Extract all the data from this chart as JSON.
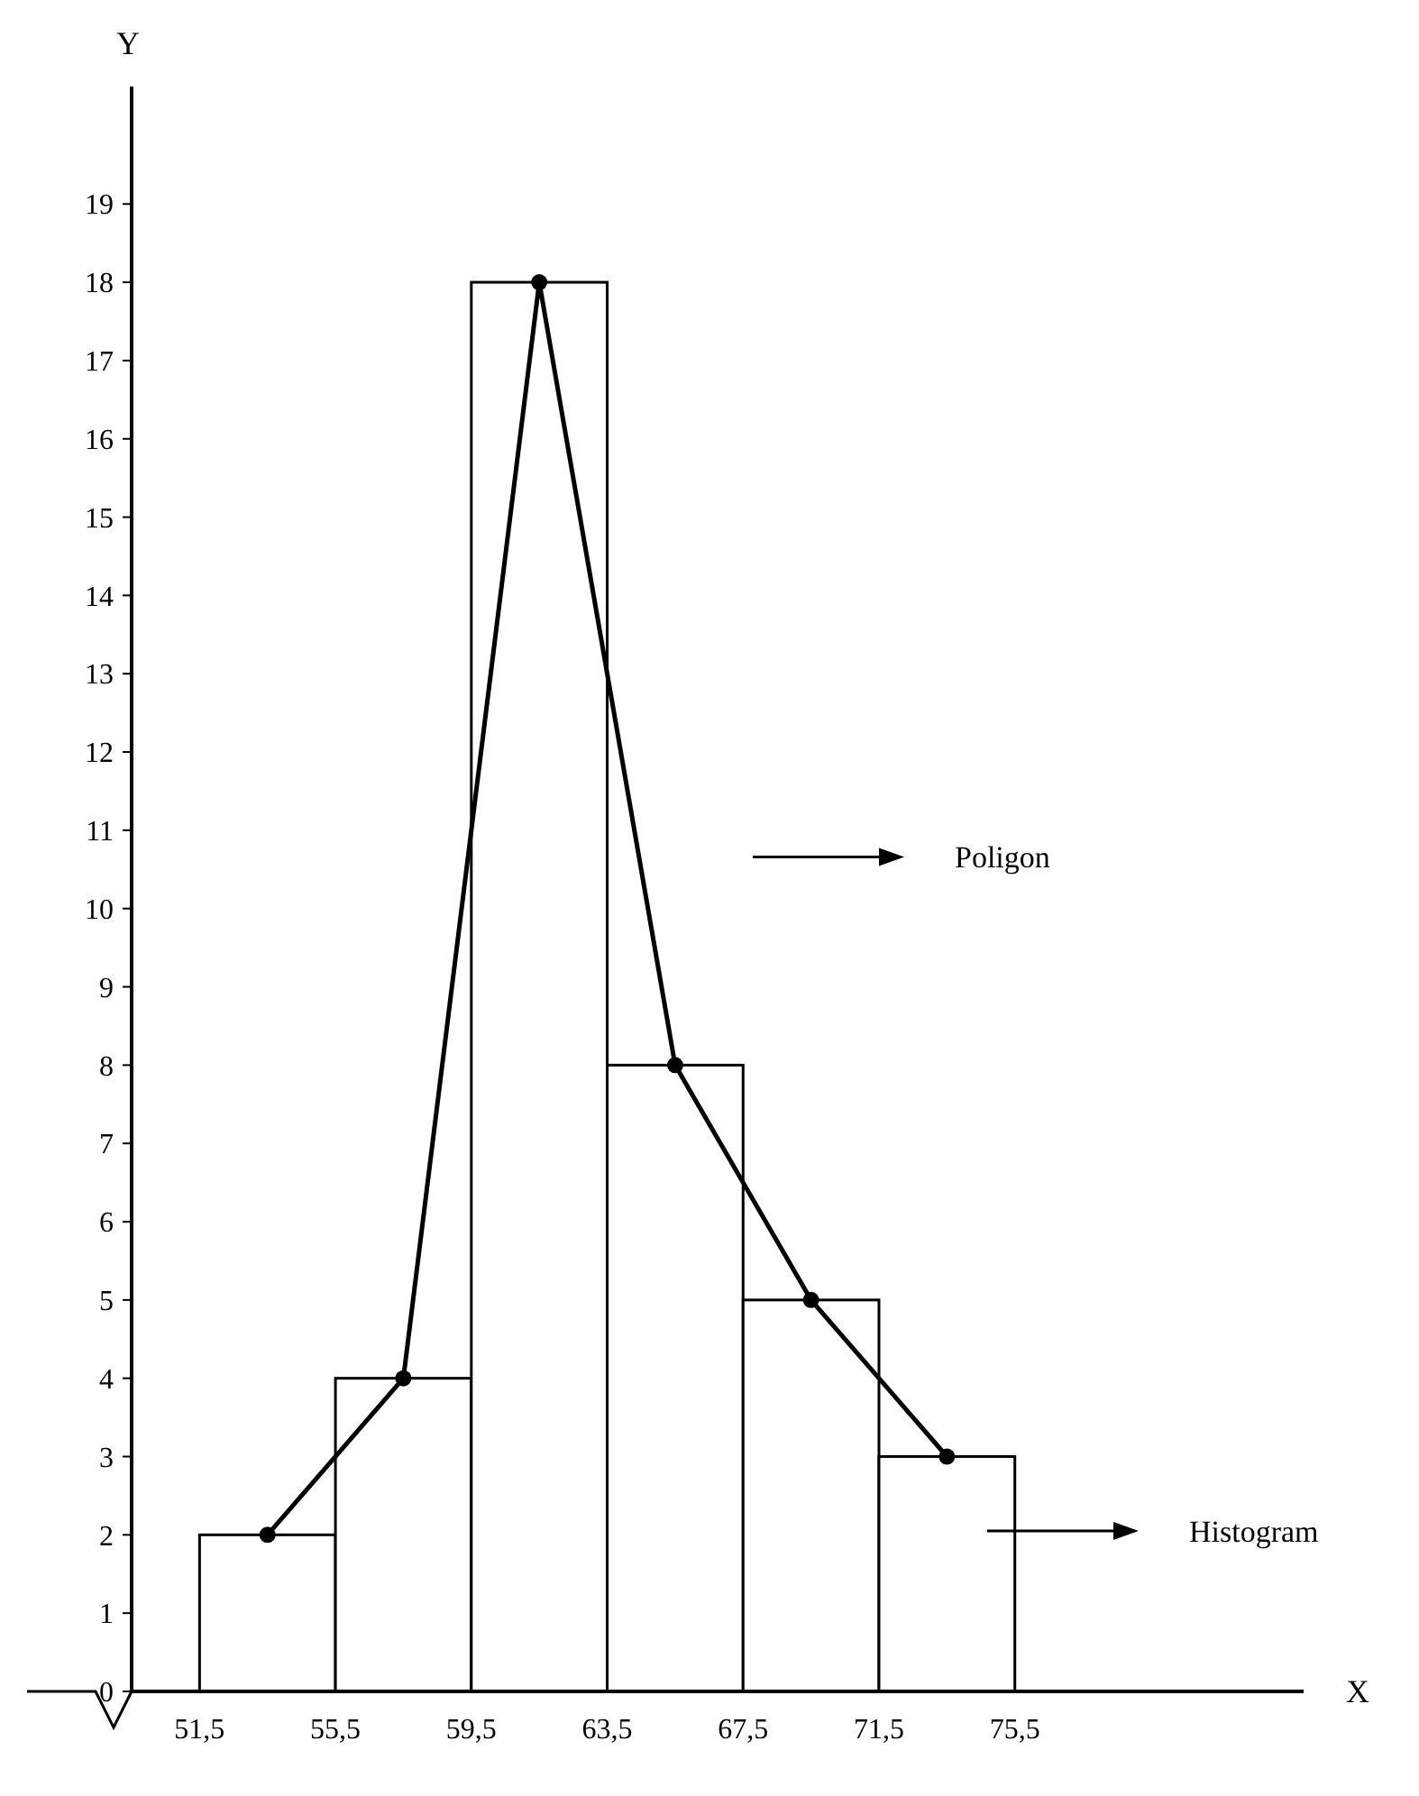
{
  "chart_data": {
    "type": "histogram",
    "xlabel": "X",
    "ylabel": "Y",
    "bins": [
      51.5,
      55.5,
      59.5,
      63.5,
      67.5,
      71.5,
      75.5
    ],
    "values": [
      2,
      4,
      18,
      8,
      5,
      3
    ],
    "color": "#ffffff",
    "series": [
      {
        "type": "line",
        "x": [
          53.5,
          57.5,
          61.5,
          65.5,
          69.5,
          73.5
        ],
        "values": [
          2,
          4,
          18,
          8,
          5,
          3
        ],
        "color": "#000000",
        "marker": "circle"
      }
    ],
    "xlim": [
      49.5,
      84
    ],
    "ylim": [
      0,
      20.5
    ],
    "xticks": [
      {
        "value": 51.5,
        "label": "51,5"
      },
      {
        "value": 55.5,
        "label": "55,5"
      },
      {
        "value": 59.5,
        "label": "59,5"
      },
      {
        "value": 63.5,
        "label": "63,5"
      },
      {
        "value": 67.5,
        "label": "67,5"
      },
      {
        "value": 71.5,
        "label": "71,5"
      },
      {
        "value": 75.5,
        "label": "75,5"
      }
    ],
    "yticks": [
      0,
      1,
      2,
      3,
      4,
      5,
      6,
      7,
      8,
      9,
      10,
      11,
      12,
      13,
      14,
      15,
      16,
      17,
      18,
      19
    ],
    "annotations": [
      "Poligon",
      "Histogram"
    ],
    "grid": false
  }
}
